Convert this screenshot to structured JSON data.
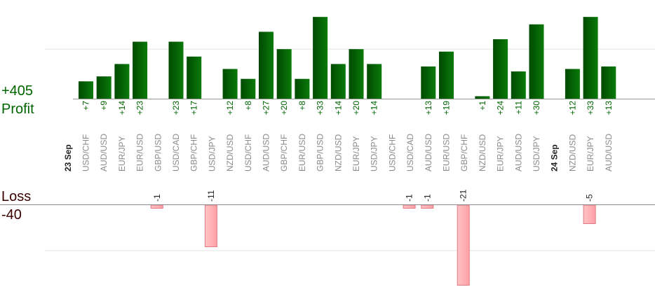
{
  "labels": {
    "profit_total": "+405",
    "profit": "Profit",
    "loss": "Loss",
    "loss_total": "-40"
  },
  "colors": {
    "profit_bar_dark": "#004a00",
    "profit_bar_light": "#0a7a0a",
    "loss_bar_fill": "#ffb6b9",
    "loss_bar_edge": "#e07a80",
    "profit_text": "#006400",
    "loss_text": "#3b0000",
    "axis_text": "#8a8a8a",
    "grid": "#e4e4e4"
  },
  "chart_data": {
    "type": "bar",
    "title": "",
    "xlabel": "",
    "ylabel": "",
    "grid": true,
    "date_markers": [
      {
        "label": "23 Sep",
        "before_index": 0
      },
      {
        "label": "24 Sep",
        "before_index": 26
      }
    ],
    "categories": [
      "USD/CHF",
      "AUD/USD",
      "EUR/JPY",
      "EUR/USD",
      "GBP/USD",
      "USD/CAD",
      "GBP/CHF",
      "USD/JPY",
      "NZD/USD",
      "USD/CHF",
      "AUD/USD",
      "GBP/CHF",
      "EUR/USD",
      "GBP/USD",
      "NZD/USD",
      "EUR/JPY",
      "USD/JPY",
      "USD/CHF",
      "USD/CAD",
      "AUD/USD",
      "EUR/USD",
      "GBP/CHF",
      "NZD/USD",
      "EUR/JPY",
      "AUD/USD",
      "USD/JPY",
      "NZD/USD",
      "EUR/JPY",
      "AUD/USD"
    ],
    "profit": {
      "name": "Profit",
      "values": [
        7,
        9,
        14,
        23,
        0,
        23,
        17,
        0,
        12,
        8,
        27,
        20,
        8,
        33,
        14,
        20,
        14,
        0,
        0,
        13,
        19,
        0,
        1,
        24,
        11,
        30,
        12,
        33,
        13
      ],
      "ylim": [
        0,
        20
      ]
    },
    "loss": {
      "name": "Loss",
      "values": [
        0,
        0,
        0,
        0,
        -1,
        0,
        0,
        -11,
        0,
        0,
        0,
        0,
        0,
        0,
        0,
        0,
        0,
        0,
        -1,
        -1,
        0,
        -21,
        0,
        0,
        0,
        0,
        0,
        -5,
        0
      ],
      "ylim": [
        -21,
        0
      ]
    }
  }
}
